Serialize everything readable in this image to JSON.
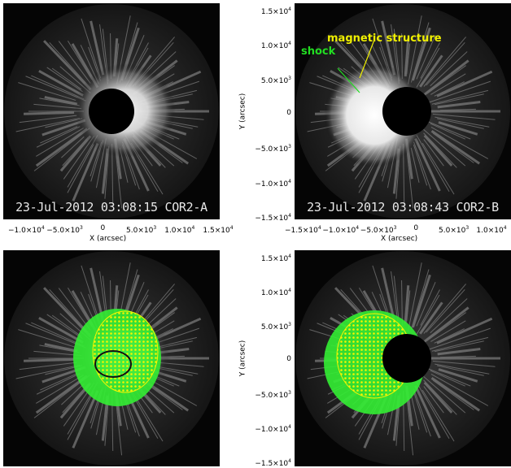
{
  "panels": {
    "top_left": {
      "label": "23-Jul-2012 03:08:15 COR2-A"
    },
    "top_right": {
      "label": "23-Jul-2012 03:08:43 COR2-B"
    },
    "bottom_left": {
      "label": ""
    },
    "bottom_right": {
      "label": ""
    }
  },
  "axes": {
    "x_title": "X (arcsec)",
    "y_title": "Y (arcsec)",
    "x_ticks_a": [
      "−1.0×10^4",
      "−5.0×10^3",
      "0",
      "5.0×10^3",
      "1.0×10^4",
      "1.5×10^4"
    ],
    "x_ticks_b": [
      "−1.5×10^4",
      "−1.0×10^4",
      "−5.0×10^3",
      "0",
      "5.0×10^3",
      "1.0×10^4"
    ],
    "y_ticks": [
      "1.5×10^4",
      "1.0×10^4",
      "5.0×10^3",
      "0",
      "−5.0×10^3",
      "−1.0×10^4",
      "−1.5×10^4"
    ]
  },
  "annotations": {
    "shock": "shock",
    "magnetic_structure": "magnetic structure",
    "shock_color": "#22dd22",
    "magnetic_color": "#f0f000"
  },
  "colors": {
    "background": "#050505",
    "corona": "#f2f2f2",
    "model_green": "#33ee33",
    "model_yellow": "#f5f500"
  }
}
